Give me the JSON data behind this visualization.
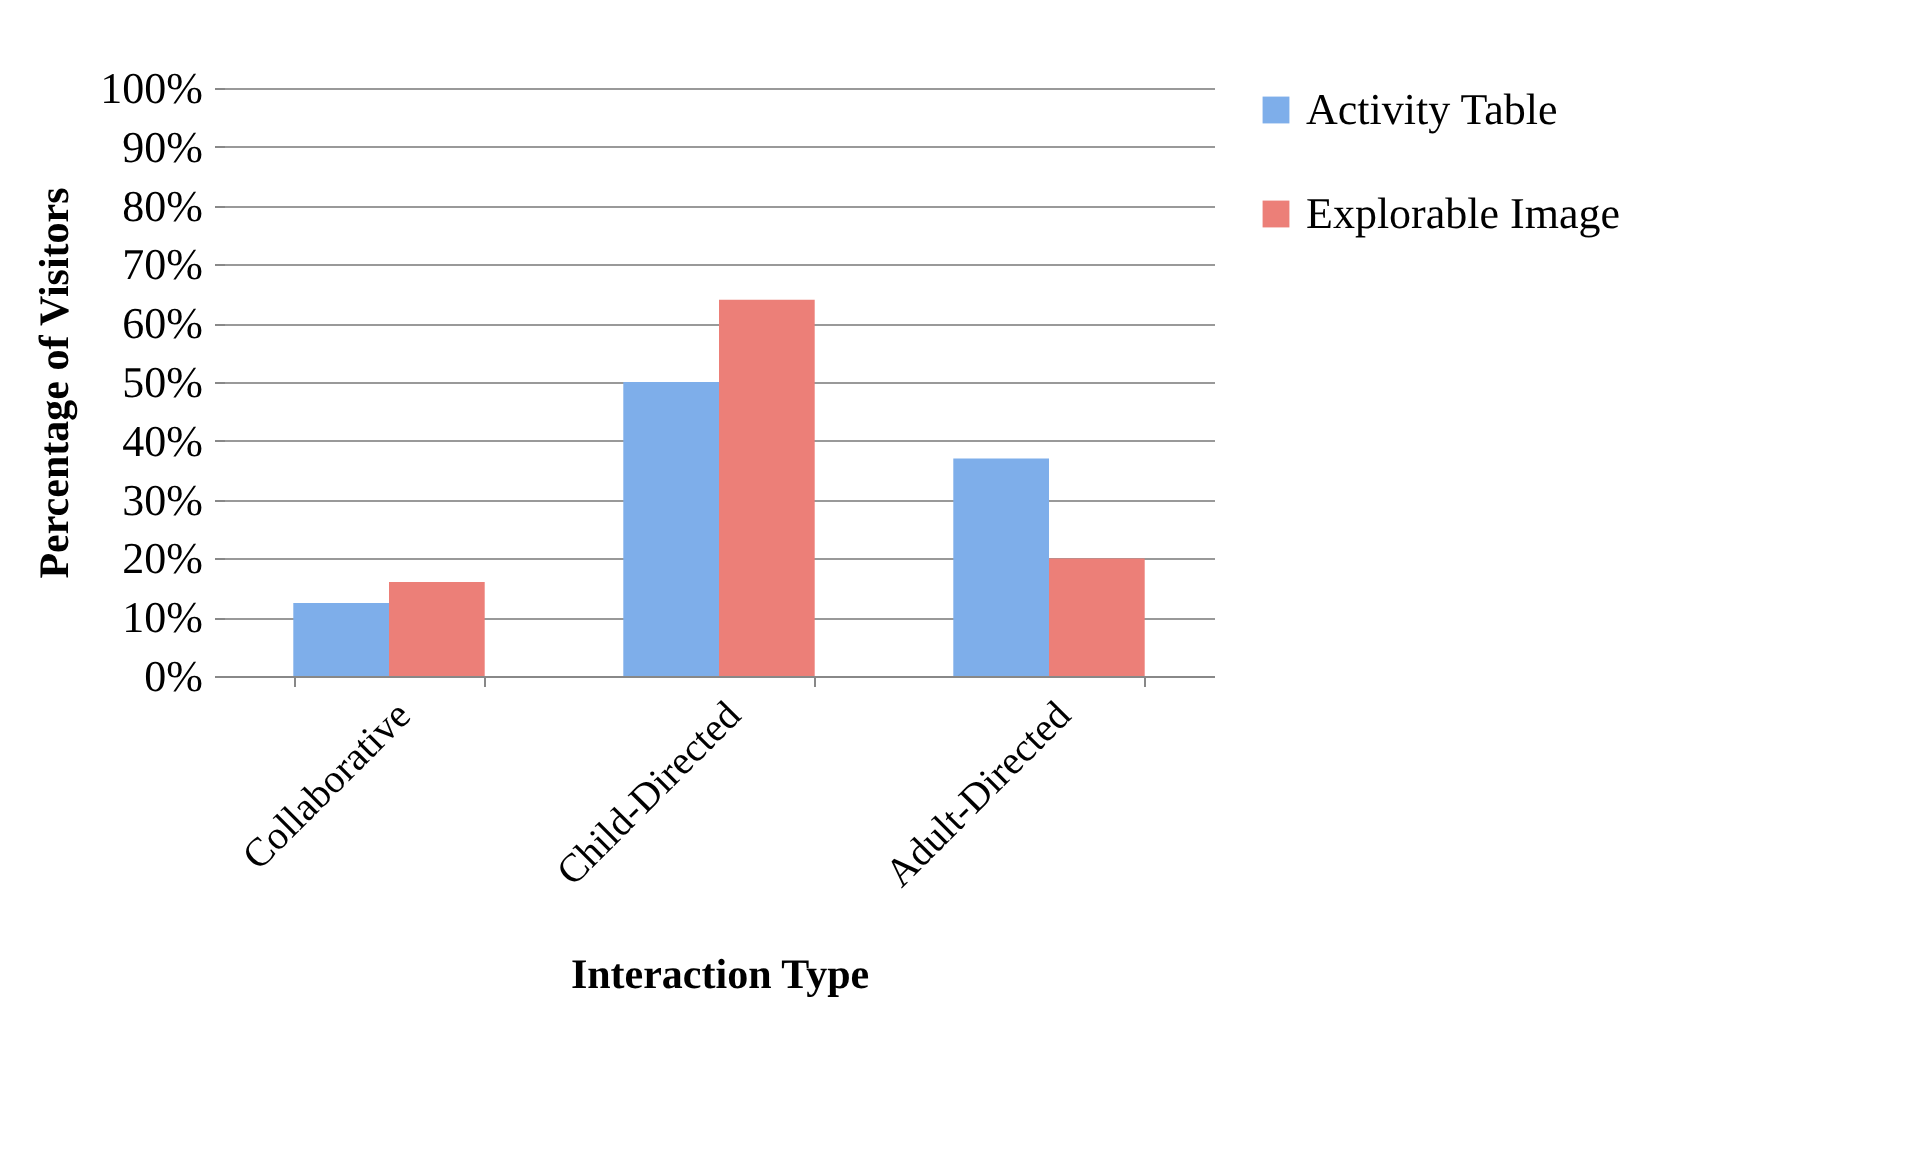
{
  "chart_data": {
    "type": "bar",
    "xlabel": "Interaction Type",
    "ylabel": "Percentage of Visitors",
    "categories": [
      "Collaborative",
      "Child-Directed",
      "Adult-Directed"
    ],
    "series": [
      {
        "name": "Activity Table",
        "color": "#7eaeea",
        "values": [
          12.4,
          50,
          37
        ]
      },
      {
        "name": "Explorable Image",
        "color": "#ec7f78",
        "values": [
          16,
          64,
          20
        ]
      }
    ],
    "ylim": [
      0,
      100
    ],
    "yticks": [
      {
        "value": 0,
        "label": "0%"
      },
      {
        "value": 10,
        "label": "10%"
      },
      {
        "value": 20,
        "label": "20%"
      },
      {
        "value": 30,
        "label": "30%"
      },
      {
        "value": 40,
        "label": "40%"
      },
      {
        "value": 50,
        "label": "50%"
      },
      {
        "value": 60,
        "label": "60%"
      },
      {
        "value": 70,
        "label": "70%"
      },
      {
        "value": 80,
        "label": "80%"
      },
      {
        "value": 90,
        "label": "90%"
      },
      {
        "value": 100,
        "label": "100%"
      }
    ],
    "grid": "y",
    "legend": "right"
  }
}
